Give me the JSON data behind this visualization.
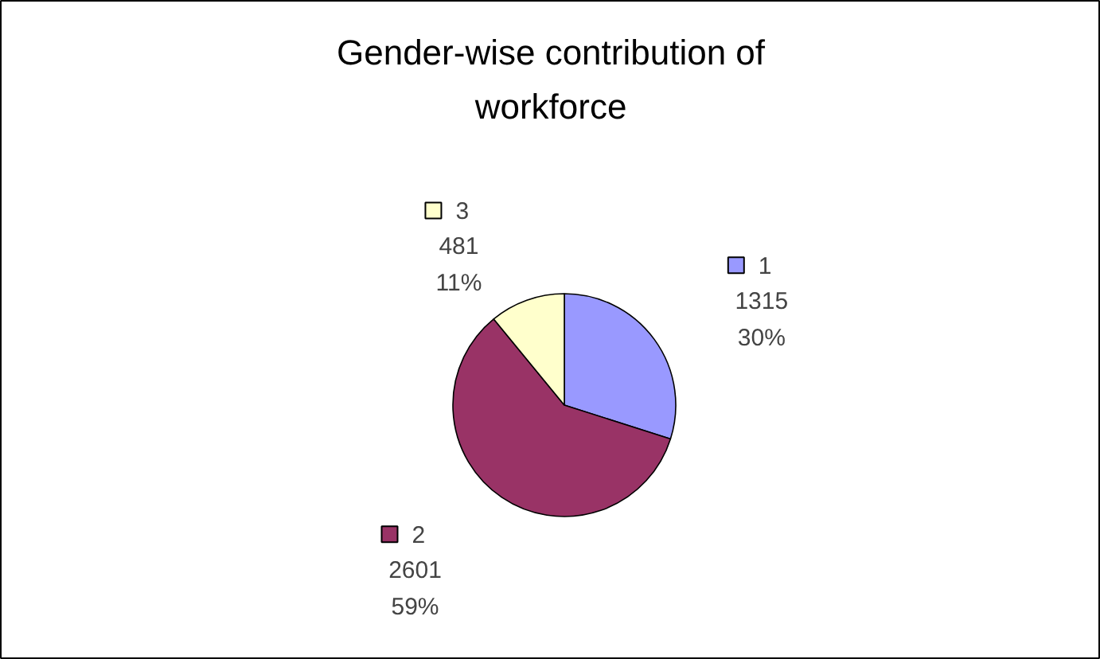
{
  "chart_data": {
    "type": "pie",
    "title": "Gender-wise contribution of workforce",
    "categories": [
      "1",
      "2",
      "3"
    ],
    "values": [
      1315,
      2601,
      481
    ],
    "colors": [
      "#9999ff",
      "#993366",
      "#ffffcc"
    ],
    "value_labels": [
      "1315\n30%",
      "2601\n59%",
      "481\n11%"
    ],
    "legend": "top right"
  }
}
